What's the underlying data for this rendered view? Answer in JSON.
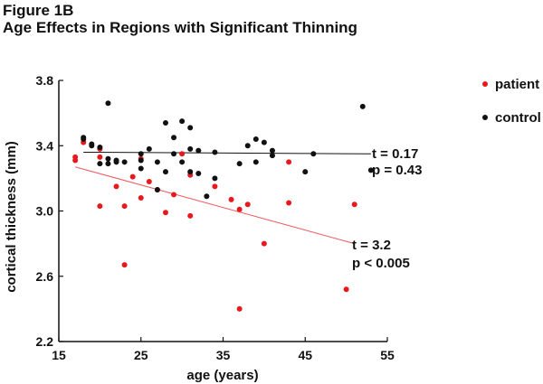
{
  "figure": {
    "label": "Figure 1B",
    "title": "Age Effects in Regions with Significant Thinning"
  },
  "colors": {
    "patient": "#e8191c",
    "control": "#111111",
    "axis": "#111111",
    "patient_fit": "#f0575a",
    "control_fit": "#111111"
  },
  "chart_data": {
    "type": "scatter",
    "title": "Age Effects in Regions with Significant Thinning",
    "xlabel": "age (years)",
    "ylabel": "cortical thickness (mm)",
    "xlim": [
      15,
      55
    ],
    "ylim": [
      2.2,
      3.8
    ],
    "xticks": [
      15,
      25,
      35,
      45,
      55
    ],
    "yticks": [
      2.2,
      2.6,
      3.0,
      3.4,
      3.8
    ],
    "grid": false,
    "legend_position": "top-right",
    "series": [
      {
        "name": "patient",
        "color": "#e8191c",
        "points": [
          {
            "x": 17,
            "y": 3.31
          },
          {
            "x": 17,
            "y": 3.33
          },
          {
            "x": 18,
            "y": 3.42
          },
          {
            "x": 20,
            "y": 3.33
          },
          {
            "x": 20,
            "y": 3.38
          },
          {
            "x": 20,
            "y": 3.03
          },
          {
            "x": 22,
            "y": 3.15
          },
          {
            "x": 23,
            "y": 3.03
          },
          {
            "x": 23,
            "y": 2.67
          },
          {
            "x": 24,
            "y": 3.21
          },
          {
            "x": 25,
            "y": 3.08
          },
          {
            "x": 25,
            "y": 3.32
          },
          {
            "x": 26,
            "y": 3.18
          },
          {
            "x": 27,
            "y": 3.13
          },
          {
            "x": 28,
            "y": 2.99
          },
          {
            "x": 29,
            "y": 3.1
          },
          {
            "x": 30,
            "y": 3.35
          },
          {
            "x": 31,
            "y": 3.22
          },
          {
            "x": 31,
            "y": 2.97
          },
          {
            "x": 34,
            "y": 3.15
          },
          {
            "x": 36,
            "y": 3.07
          },
          {
            "x": 37,
            "y": 3.01
          },
          {
            "x": 37,
            "y": 2.4
          },
          {
            "x": 38,
            "y": 3.04
          },
          {
            "x": 40,
            "y": 2.8
          },
          {
            "x": 43,
            "y": 3.3
          },
          {
            "x": 43,
            "y": 3.05
          },
          {
            "x": 50,
            "y": 2.52
          },
          {
            "x": 51,
            "y": 3.04
          }
        ],
        "fit": {
          "x": [
            17,
            51
          ],
          "y": [
            3.27,
            2.8
          ]
        }
      },
      {
        "name": "control",
        "color": "#111111",
        "points": [
          {
            "x": 18,
            "y": 3.44
          },
          {
            "x": 18,
            "y": 3.45
          },
          {
            "x": 19,
            "y": 3.4
          },
          {
            "x": 19,
            "y": 3.41
          },
          {
            "x": 20,
            "y": 3.39
          },
          {
            "x": 20,
            "y": 3.29
          },
          {
            "x": 21,
            "y": 3.66
          },
          {
            "x": 21,
            "y": 3.29
          },
          {
            "x": 21,
            "y": 3.32
          },
          {
            "x": 22,
            "y": 3.3
          },
          {
            "x": 22,
            "y": 3.31
          },
          {
            "x": 23,
            "y": 3.3
          },
          {
            "x": 25,
            "y": 3.35
          },
          {
            "x": 25,
            "y": 3.31
          },
          {
            "x": 25,
            "y": 3.26
          },
          {
            "x": 26,
            "y": 3.38
          },
          {
            "x": 27,
            "y": 3.3
          },
          {
            "x": 27,
            "y": 3.13
          },
          {
            "x": 28,
            "y": 3.54
          },
          {
            "x": 28,
            "y": 3.24
          },
          {
            "x": 29,
            "y": 3.45
          },
          {
            "x": 29,
            "y": 3.35
          },
          {
            "x": 30,
            "y": 3.55
          },
          {
            "x": 30,
            "y": 3.3
          },
          {
            "x": 31,
            "y": 3.51
          },
          {
            "x": 31,
            "y": 3.38
          },
          {
            "x": 31,
            "y": 3.24
          },
          {
            "x": 32,
            "y": 3.37
          },
          {
            "x": 32,
            "y": 3.23
          },
          {
            "x": 33,
            "y": 3.09
          },
          {
            "x": 34,
            "y": 3.36
          },
          {
            "x": 34,
            "y": 3.2
          },
          {
            "x": 37,
            "y": 3.29
          },
          {
            "x": 38,
            "y": 3.4
          },
          {
            "x": 39,
            "y": 3.44
          },
          {
            "x": 39,
            "y": 3.3
          },
          {
            "x": 40,
            "y": 3.42
          },
          {
            "x": 41,
            "y": 3.34
          },
          {
            "x": 41,
            "y": 3.37
          },
          {
            "x": 45,
            "y": 3.24
          },
          {
            "x": 46,
            "y": 3.35
          },
          {
            "x": 52,
            "y": 3.64
          },
          {
            "x": 53,
            "y": 3.25
          }
        ],
        "fit": {
          "x": [
            18,
            53
          ],
          "y": [
            3.36,
            3.35
          ]
        }
      }
    ],
    "annotations": [
      {
        "series": "control",
        "lines": [
          "t = 0.17",
          "p = 0.43"
        ]
      },
      {
        "series": "patient",
        "lines": [
          "t = 3.2",
          "p < 0.005"
        ]
      }
    ],
    "legend": [
      {
        "label": "patient",
        "color": "#e8191c"
      },
      {
        "label": "control",
        "color": "#111111"
      }
    ]
  }
}
